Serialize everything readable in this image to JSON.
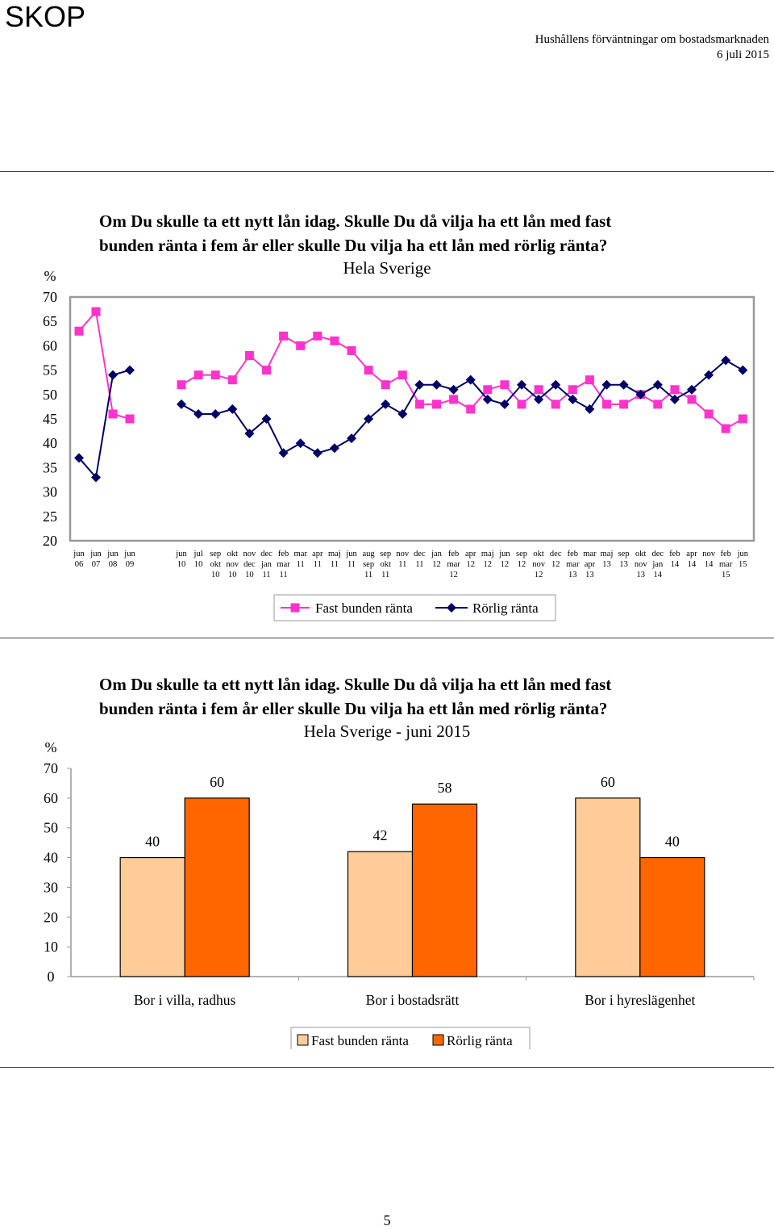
{
  "header": {
    "brand": "SKOP",
    "report": "Hushållens förväntningar om bostadsmarknaden",
    "date": "6 juli 2015"
  },
  "page_number": "5",
  "chart_data": [
    {
      "type": "line",
      "title_line1": "Om Du skulle ta ett nytt lån idag. Skulle Du då vilja ha ett lån med fast",
      "title_line2": "bunden ränta i fem år eller skulle Du vilja ha ett lån med rörlig ränta?",
      "subtitle": "Hela Sverige",
      "ylabel": "%",
      "ylim": [
        20,
        70
      ],
      "yticks": [
        20,
        25,
        30,
        35,
        40,
        45,
        50,
        55,
        60,
        65,
        70
      ],
      "legend_position": "bottom-center",
      "segments": [
        [
          0,
          3
        ],
        [
          4,
          40
        ]
      ],
      "categories": [
        [
          "jun",
          "06"
        ],
        [
          "jun",
          "07"
        ],
        [
          "jun",
          "08"
        ],
        [
          "jun",
          "09"
        ],
        [
          "jun",
          "10"
        ],
        [
          "jul",
          "10"
        ],
        [
          "sep",
          "okt",
          "10"
        ],
        [
          "okt",
          "nov",
          "10"
        ],
        [
          "nov",
          "dec",
          "10"
        ],
        [
          "dec",
          "jan",
          "11"
        ],
        [
          "feb",
          "mar",
          "11"
        ],
        [
          "mar",
          "11"
        ],
        [
          "apr",
          "11"
        ],
        [
          "maj",
          "11"
        ],
        [
          "jun",
          "11"
        ],
        [
          "aug",
          "sep",
          "11"
        ],
        [
          "sep",
          "okt",
          "11"
        ],
        [
          "nov",
          "11"
        ],
        [
          "dec",
          "11"
        ],
        [
          "jan",
          "12"
        ],
        [
          "feb",
          "mar",
          "12"
        ],
        [
          "apr",
          "12"
        ],
        [
          "maj",
          "12"
        ],
        [
          "jun",
          "12"
        ],
        [
          "sep",
          "12"
        ],
        [
          "okt",
          "nov",
          "12"
        ],
        [
          "dec",
          "12"
        ],
        [
          "feb",
          "mar",
          "13"
        ],
        [
          "mar",
          "apr",
          "13"
        ],
        [
          "maj",
          "13"
        ],
        [
          "sep",
          "13"
        ],
        [
          "okt",
          "nov",
          "13"
        ],
        [
          "dec",
          "jan",
          "14"
        ],
        [
          "feb",
          "14"
        ],
        [
          "apr",
          "14"
        ],
        [
          "nov",
          "14"
        ],
        [
          "feb",
          "mar",
          "15"
        ],
        [
          "jun",
          "15"
        ]
      ],
      "series": [
        {
          "name": "Fast bunden ränta",
          "color": "#ff33cc",
          "marker": "square",
          "values": [
            63,
            67,
            46,
            45,
            52,
            54,
            54,
            53,
            58,
            55,
            62,
            60,
            62,
            61,
            59,
            55,
            52,
            54,
            48,
            48,
            49,
            47,
            51,
            52,
            48,
            51,
            48,
            51,
            53,
            48,
            48,
            50,
            48,
            51,
            49,
            46,
            43,
            45
          ]
        },
        {
          "name": "Rörlig ränta",
          "color": "#000066",
          "marker": "diamond",
          "values": [
            37,
            33,
            54,
            55,
            48,
            46,
            46,
            47,
            42,
            45,
            38,
            40,
            38,
            39,
            41,
            45,
            48,
            46,
            52,
            52,
            51,
            53,
            49,
            48,
            52,
            49,
            52,
            49,
            47,
            52,
            52,
            50,
            52,
            49,
            51,
            54,
            57,
            55
          ]
        }
      ]
    },
    {
      "type": "bar",
      "title_line1": "Om Du skulle ta ett nytt lån idag. Skulle Du då vilja ha ett lån med fast",
      "title_line2": "bunden ränta i fem år eller skulle Du vilja ha ett lån med rörlig ränta?",
      "subtitle": "Hela Sverige - juni 2015",
      "ylabel": "%",
      "ylim": [
        0,
        70
      ],
      "yticks": [
        0,
        10,
        20,
        30,
        40,
        50,
        60,
        70
      ],
      "legend_position": "bottom-center",
      "categories": [
        "Bor i villa, radhus",
        "Bor i bostadsrätt",
        "Bor i hyreslägenhet"
      ],
      "series": [
        {
          "name": "Fast bunden ränta",
          "color": "#ffcc99",
          "values": [
            40,
            42,
            60
          ]
        },
        {
          "name": "Rörlig ränta",
          "color": "#ff6600",
          "values": [
            60,
            58,
            40
          ]
        }
      ]
    }
  ]
}
